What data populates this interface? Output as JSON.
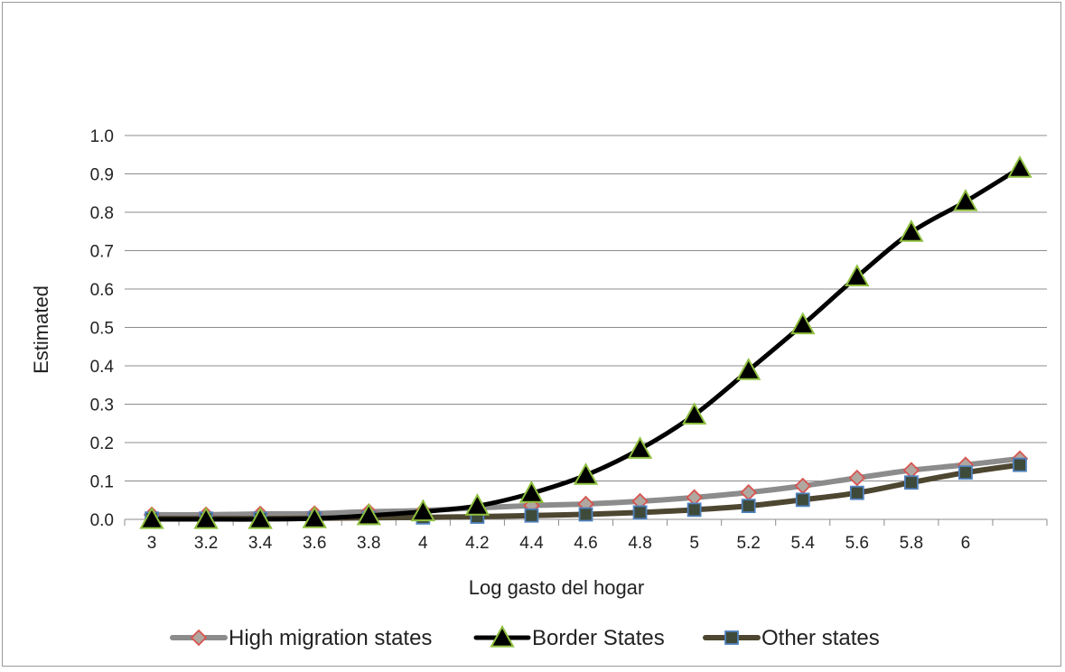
{
  "chart_data": {
    "type": "line",
    "title": "",
    "xlabel": "Log gasto del hogar",
    "ylabel": "Estimated",
    "x_tick_labels": [
      "3",
      "3.2",
      "3.4",
      "3.6",
      "3.8",
      "4",
      "4.2",
      "4.4",
      "4.6",
      "4.8",
      "5",
      "5.2",
      "5.4",
      "5.6",
      "5.8",
      "6"
    ],
    "y_tick_labels": [
      "0.0",
      "0.1",
      "0.2",
      "0.3",
      "0.4",
      "0.5",
      "0.6",
      "0.7",
      "0.8",
      "0.9",
      "1.0"
    ],
    "ylim": [
      0,
      1.0
    ],
    "grid": "horizontal",
    "legend_position": "bottom",
    "series": [
      {
        "name": "High migration states",
        "line_color": "#8c8c8c",
        "marker": "diamond",
        "marker_fill": "#b0a7a0",
        "marker_stroke": "#d9534f",
        "values": [
          0.012,
          0.012,
          0.014,
          0.015,
          0.02,
          0.023,
          0.03,
          0.036,
          0.04,
          0.047,
          0.057,
          0.07,
          0.087,
          0.108,
          0.128,
          0.142,
          0.158
        ]
      },
      {
        "name": "Border States",
        "line_color": "#000000",
        "marker": "triangle",
        "marker_fill": "#000000",
        "marker_stroke": "#8fbf3f",
        "values": [
          0.0,
          0.0,
          0.0,
          0.002,
          0.01,
          0.02,
          0.035,
          0.068,
          0.115,
          0.183,
          0.272,
          0.388,
          0.507,
          0.632,
          0.748,
          0.828,
          0.915
        ]
      },
      {
        "name": "Other states",
        "line_color": "#4d4630",
        "marker": "square",
        "marker_fill": "#3e4a3a",
        "marker_stroke": "#4f81bd",
        "values": [
          0.002,
          0.002,
          0.002,
          0.003,
          0.004,
          0.005,
          0.007,
          0.01,
          0.013,
          0.018,
          0.025,
          0.035,
          0.051,
          0.069,
          0.096,
          0.122,
          0.142
        ]
      }
    ]
  }
}
